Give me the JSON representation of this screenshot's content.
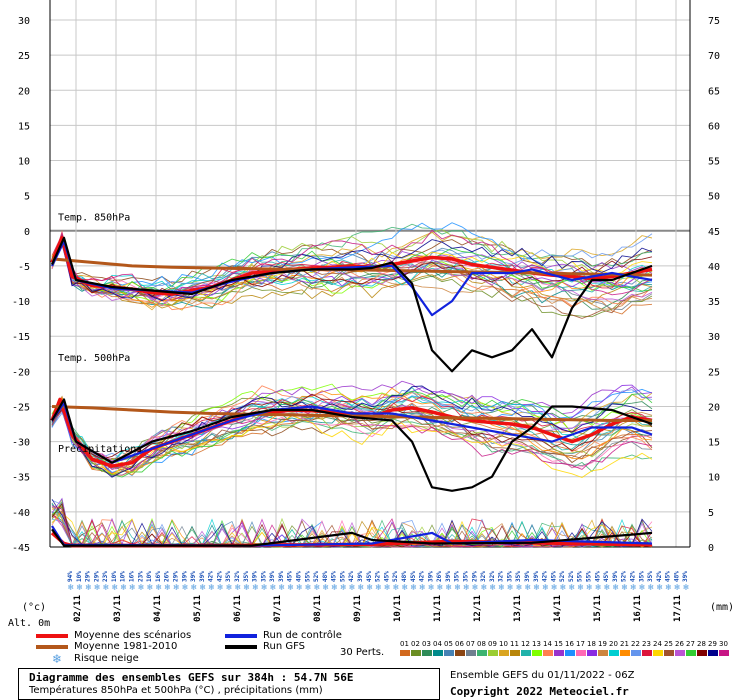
{
  "chart_data": {
    "type": "line",
    "left_axis": {
      "label": "(°c)",
      "ticks": [
        30,
        25,
        20,
        15,
        10,
        5,
        0,
        -5,
        -10,
        -15,
        -20,
        -25,
        -30,
        -35,
        -40,
        -45
      ],
      "range": [
        -45,
        30
      ]
    },
    "right_axis": {
      "label": "(mm)",
      "ticks": [
        75,
        70,
        65,
        60,
        55,
        50,
        45,
        40,
        35,
        30,
        25,
        20,
        15,
        10,
        5,
        0
      ]
    },
    "x_ticks": [
      "02/11",
      "03/11",
      "04/11",
      "05/11",
      "06/11",
      "07/11",
      "08/11",
      "09/11",
      "10/11",
      "11/11",
      "12/11",
      "13/11",
      "14/11",
      "15/11",
      "16/11",
      "17/11"
    ],
    "annotations": [
      "Temp. 850hPa",
      "Temp. 500hPa",
      "Précipitations",
      "Alt. 0m"
    ],
    "snow_risk_pct": [
      "94%",
      "10%",
      "29%",
      "29%",
      "23%",
      "10%",
      "10%",
      "16%",
      "23%",
      "10%",
      "16%",
      "26%",
      "29%",
      "39%",
      "39%",
      "39%",
      "42%",
      "42%",
      "35%",
      "32%",
      "35%",
      "39%",
      "35%",
      "39%",
      "39%",
      "45%",
      "48%",
      "55%",
      "52%",
      "48%",
      "45%",
      "55%",
      "42%",
      "39%",
      "45%",
      "52%",
      "45%",
      "52%",
      "48%",
      "45%",
      "42%",
      "39%",
      "26%",
      "39%",
      "35%",
      "35%",
      "29%",
      "32%",
      "32%",
      "32%",
      "35%",
      "35%",
      "39%",
      "39%",
      "42%",
      "45%",
      "52%",
      "52%",
      "55%",
      "55%",
      "45%",
      "45%",
      "39%",
      "52%",
      "42%",
      "35%",
      "35%",
      "42%",
      "45%",
      "48%",
      "39%"
    ],
    "series": [
      {
        "name": "Moyenne des scénarios",
        "color": "#ee1111",
        "t850": [
          [
            0,
            -4.5
          ],
          [
            0.25,
            -1
          ],
          [
            0.5,
            -6.5
          ],
          [
            1,
            -7.8
          ],
          [
            1.5,
            -8
          ],
          [
            2,
            -8.3
          ],
          [
            2.5,
            -8.8
          ],
          [
            3,
            -9
          ],
          [
            3.5,
            -8.5
          ],
          [
            4,
            -8
          ],
          [
            4.5,
            -7
          ],
          [
            5,
            -6
          ],
          [
            5.5,
            -5.8
          ],
          [
            6,
            -5.5
          ],
          [
            6.5,
            -5.3
          ],
          [
            7,
            -5.2
          ],
          [
            7.5,
            -5
          ],
          [
            8,
            -5.2
          ],
          [
            8.5,
            -4.8
          ],
          [
            9,
            -4.3
          ],
          [
            9.5,
            -3.8
          ],
          [
            10,
            -4
          ],
          [
            10.5,
            -4.8
          ],
          [
            11,
            -5.2
          ],
          [
            11.5,
            -5.6
          ],
          [
            12,
            -6
          ],
          [
            12.5,
            -6.3
          ],
          [
            13,
            -6.5
          ],
          [
            13.5,
            -6.8
          ],
          [
            14,
            -6.5
          ],
          [
            14.5,
            -6
          ],
          [
            15,
            -5.5
          ]
        ],
        "t500": [
          [
            0,
            -27
          ],
          [
            0.2,
            -24
          ],
          [
            0.5,
            -29
          ],
          [
            1,
            -32.5
          ],
          [
            1.5,
            -33.5
          ],
          [
            2,
            -33
          ],
          [
            2.5,
            -31
          ],
          [
            3,
            -30
          ],
          [
            3.5,
            -29
          ],
          [
            4,
            -28
          ],
          [
            4.5,
            -27
          ],
          [
            5,
            -26
          ],
          [
            5.5,
            -25.8
          ],
          [
            6,
            -25.5
          ],
          [
            6.5,
            -25.6
          ],
          [
            7,
            -25.8
          ],
          [
            7.5,
            -26
          ],
          [
            8,
            -26.5
          ],
          [
            8.5,
            -25.5
          ],
          [
            9,
            -25.2
          ],
          [
            9.5,
            -25.8
          ],
          [
            10,
            -26.5
          ],
          [
            10.5,
            -27
          ],
          [
            11,
            -27.3
          ],
          [
            11.5,
            -27.5
          ],
          [
            12,
            -28
          ],
          [
            12.5,
            -29
          ],
          [
            13,
            -30
          ],
          [
            13.5,
            -29
          ],
          [
            14,
            -27.5
          ],
          [
            14.5,
            -26.5
          ],
          [
            15,
            -27
          ]
        ],
        "precip": [
          [
            0,
            2
          ],
          [
            0.3,
            0.5
          ],
          [
            0.5,
            0.2
          ],
          [
            4,
            0.2
          ],
          [
            8,
            0.4
          ],
          [
            10,
            0.8
          ],
          [
            12,
            0.6
          ],
          [
            15,
            0.3
          ]
        ]
      },
      {
        "name": "Moyenne 1981-2010",
        "color": "#b3571a",
        "t850": [
          [
            0,
            -4
          ],
          [
            1,
            -4.5
          ],
          [
            2,
            -5
          ],
          [
            3,
            -5.2
          ],
          [
            4,
            -5.3
          ],
          [
            5,
            -5.4
          ],
          [
            6,
            -5.5
          ],
          [
            7,
            -5.5
          ],
          [
            8,
            -5.6
          ],
          [
            9,
            -5.7
          ],
          [
            10,
            -5.8
          ],
          [
            11,
            -5.9
          ],
          [
            12,
            -6
          ],
          [
            13,
            -6.1
          ],
          [
            14,
            -6.2
          ],
          [
            15,
            -6.3
          ]
        ],
        "t500": [
          [
            0,
            -25
          ],
          [
            1,
            -25.2
          ],
          [
            2,
            -25.5
          ],
          [
            3,
            -25.8
          ],
          [
            4,
            -26
          ],
          [
            5,
            -26.1
          ],
          [
            6,
            -26.2
          ],
          [
            7,
            -26.3
          ],
          [
            8,
            -26.4
          ],
          [
            9,
            -26.5
          ],
          [
            10,
            -26.6
          ],
          [
            11,
            -26.7
          ],
          [
            12,
            -26.8
          ],
          [
            13,
            -26.9
          ],
          [
            14,
            -27
          ],
          [
            15,
            -27
          ]
        ]
      },
      {
        "name": "Run de contrôle",
        "color": "#1122dd",
        "t850": [
          [
            0,
            -5
          ],
          [
            0.3,
            -1.5
          ],
          [
            0.6,
            -7
          ],
          [
            1.5,
            -8.2
          ],
          [
            2.5,
            -8.5
          ],
          [
            3.5,
            -8.8
          ],
          [
            4.5,
            -7.2
          ],
          [
            5.5,
            -6
          ],
          [
            6.5,
            -5.5
          ],
          [
            7.5,
            -5.2
          ],
          [
            8.5,
            -5
          ],
          [
            9,
            -8
          ],
          [
            9.5,
            -12
          ],
          [
            10,
            -10
          ],
          [
            10.5,
            -6
          ],
          [
            11.5,
            -6
          ],
          [
            12,
            -5.5
          ],
          [
            13,
            -7
          ],
          [
            14,
            -6
          ],
          [
            15,
            -7
          ]
        ],
        "t500": [
          [
            0,
            -27
          ],
          [
            0.3,
            -24.5
          ],
          [
            0.6,
            -30
          ],
          [
            1.5,
            -33
          ],
          [
            2.5,
            -31
          ],
          [
            3.5,
            -29
          ],
          [
            4.5,
            -27
          ],
          [
            5.5,
            -25.5
          ],
          [
            6.5,
            -25
          ],
          [
            7.5,
            -26
          ],
          [
            8.5,
            -26
          ],
          [
            9.5,
            -27
          ],
          [
            10.5,
            -28
          ],
          [
            11.5,
            -29
          ],
          [
            12.5,
            -30
          ],
          [
            13.5,
            -28
          ],
          [
            14.5,
            -28
          ],
          [
            15,
            -29
          ]
        ],
        "precip": [
          [
            0,
            3
          ],
          [
            0.3,
            0.3
          ],
          [
            5,
            0.2
          ],
          [
            8,
            0.5
          ],
          [
            9.5,
            2
          ],
          [
            10,
            0.5
          ],
          [
            12,
            1
          ],
          [
            15,
            0.5
          ]
        ]
      },
      {
        "name": "Run GFS",
        "color": "#000000",
        "t850": [
          [
            0,
            -4.8
          ],
          [
            0.3,
            -1
          ],
          [
            0.6,
            -7
          ],
          [
            1.5,
            -8
          ],
          [
            2.5,
            -8.5
          ],
          [
            3.5,
            -9
          ],
          [
            4.5,
            -7
          ],
          [
            5.5,
            -6
          ],
          [
            6.5,
            -5.5
          ],
          [
            7.5,
            -5.5
          ],
          [
            8,
            -5.3
          ],
          [
            8.5,
            -4.5
          ],
          [
            9,
            -7.5
          ],
          [
            9.5,
            -17
          ],
          [
            10,
            -20
          ],
          [
            10.5,
            -17
          ],
          [
            11,
            -18
          ],
          [
            11.5,
            -17
          ],
          [
            12,
            -14
          ],
          [
            12.5,
            -18
          ],
          [
            13,
            -11
          ],
          [
            13.5,
            -7
          ],
          [
            14,
            -7
          ],
          [
            15,
            -5
          ]
        ],
        "t500": [
          [
            0,
            -27
          ],
          [
            0.3,
            -24
          ],
          [
            0.6,
            -30
          ],
          [
            1.5,
            -33
          ],
          [
            2.5,
            -30
          ],
          [
            3.5,
            -28.5
          ],
          [
            4.5,
            -26.5
          ],
          [
            5.5,
            -25.5
          ],
          [
            6.5,
            -25.5
          ],
          [
            7.5,
            -26.5
          ],
          [
            8.5,
            -27
          ],
          [
            9,
            -30
          ],
          [
            9.5,
            -36.5
          ],
          [
            10,
            -37
          ],
          [
            10.5,
            -36.5
          ],
          [
            11,
            -35
          ],
          [
            11.5,
            -30
          ],
          [
            12,
            -28
          ],
          [
            12.5,
            -25
          ],
          [
            13,
            -25
          ],
          [
            14,
            -25.5
          ],
          [
            15,
            -27.5
          ]
        ],
        "precip": [
          [
            0,
            2.5
          ],
          [
            0.3,
            0.2
          ],
          [
            5,
            0.2
          ],
          [
            7.5,
            2
          ],
          [
            8,
            1
          ],
          [
            9.5,
            0.5
          ],
          [
            12,
            0.6
          ],
          [
            15,
            2
          ]
        ]
      }
    ]
  },
  "legend": {
    "mean_label": "Moyenne des scénarios",
    "clim_label": "Moyenne 1981-2010",
    "snow_label": "Risque neige",
    "control_label": "Run de contrôle",
    "gfs_label": "Run GFS",
    "perts_label": "30 Perts.",
    "pert_numbers": [
      "01",
      "02",
      "03",
      "04",
      "05",
      "06",
      "07",
      "08",
      "09",
      "10",
      "11",
      "12",
      "13",
      "14",
      "15",
      "16",
      "17",
      "18",
      "19",
      "20",
      "21",
      "22",
      "23",
      "24",
      "25",
      "26",
      "27",
      "28",
      "29",
      "30"
    ],
    "pert_colors": [
      "#d2691e",
      "#6b8e23",
      "#2e8b57",
      "#008b8b",
      "#4682b4",
      "#8b4513",
      "#708090",
      "#3cb371",
      "#9acd32",
      "#daa520",
      "#b8860b",
      "#20b2aa",
      "#7fff00",
      "#ff7f50",
      "#9932cc",
      "#1e90ff",
      "#ff69b4",
      "#8a2be2",
      "#cd853f",
      "#00ced1",
      "#ff8c00",
      "#6495ed",
      "#dc143c",
      "#ffd700",
      "#a0522d",
      "#ba55d3",
      "#32cd32",
      "#800000",
      "#00008b",
      "#c71585"
    ]
  },
  "footer": {
    "title": "Diagramme des ensembles GEFS sur 384h : 54.7N 56E",
    "subtitle": "Températures 850hPa et 500hPa (°C) , précipitations (mm)",
    "ensemble": "Ensemble GEFS du 01/11/2022 - 06Z",
    "copyright": "Copyright 2022 Meteociel.fr"
  },
  "labels": {
    "left_unit": "(°c)",
    "right_unit": "(mm)",
    "altitude": "Alt. 0m",
    "t850": "Temp. 850hPa",
    "t500": "Temp. 500hPa",
    "precip": "Précipitations"
  }
}
